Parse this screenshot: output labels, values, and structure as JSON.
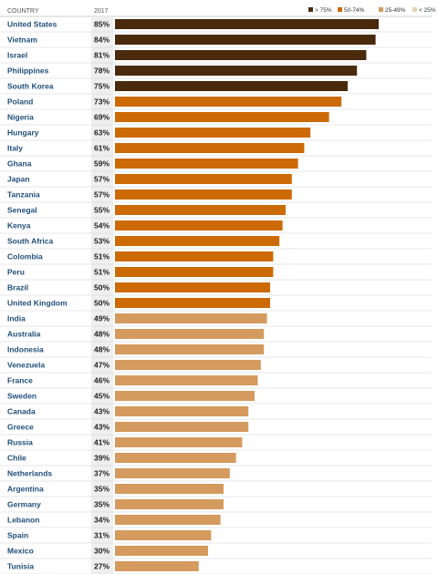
{
  "header": {
    "country_label": "COUNTRY",
    "year_label": "2017"
  },
  "legend": [
    {
      "label": "> 75%",
      "color": "#4a2a0c"
    },
    {
      "label": "50-74%",
      "color": "#cc6a06"
    },
    {
      "label": "25-49%",
      "color": "#d49a5e"
    },
    {
      "label": "< 25%",
      "color": "#e5d1b8"
    }
  ],
  "chart_data": {
    "type": "bar",
    "orientation": "horizontal",
    "series": [
      {
        "values": [
          85,
          84,
          81,
          78,
          75,
          73,
          69,
          63,
          61,
          59,
          57,
          57,
          55,
          54,
          53,
          51,
          51,
          50,
          50,
          49,
          48,
          48,
          47,
          46,
          45,
          43,
          43,
          41,
          39,
          37,
          35,
          35,
          34,
          31,
          30,
          27
        ]
      }
    ],
    "categories": [
      "United States",
      "Vietnam",
      "Israel",
      "Philippines",
      "South Korea",
      "Poland",
      "Nigeria",
      "Hungary",
      "Italy",
      "Ghana",
      "Japan",
      "Tanzania",
      "Senegal",
      "Kenya",
      "South Africa",
      "Colombia",
      "Peru",
      "Brazil",
      "United Kingdom",
      "India",
      "Australia",
      "Indonesia",
      "Venezuela",
      "France",
      "Sweden",
      "Canada",
      "Greece",
      "Russia",
      "Chile",
      "Netherlands",
      "Argentina",
      "Germany",
      "Lebanon",
      "Spain",
      "Mexico",
      "Tunisia"
    ],
    "value_labels": [
      "85%",
      "84%",
      "81%",
      "78%",
      "75%",
      "73%",
      "69%",
      "63%",
      "61%",
      "59%",
      "57%",
      "57%",
      "55%",
      "54%",
      "53%",
      "51%",
      "51%",
      "50%",
      "50%",
      "49%",
      "48%",
      "48%",
      "47%",
      "46%",
      "45%",
      "43%",
      "43%",
      "41%",
      "39%",
      "37%",
      "35%",
      "35%",
      "34%",
      "31%",
      "30%",
      "27%"
    ],
    "color_bins": [
      {
        "min": 75,
        "color": "#4a2a0c"
      },
      {
        "min": 50,
        "color": "#cc6a06"
      },
      {
        "min": 25,
        "color": "#d49a5e"
      },
      {
        "min": 0,
        "color": "#e5d1b8"
      }
    ],
    "xlim": [
      0,
      100
    ],
    "legend_position": "top-right",
    "grid": false
  }
}
